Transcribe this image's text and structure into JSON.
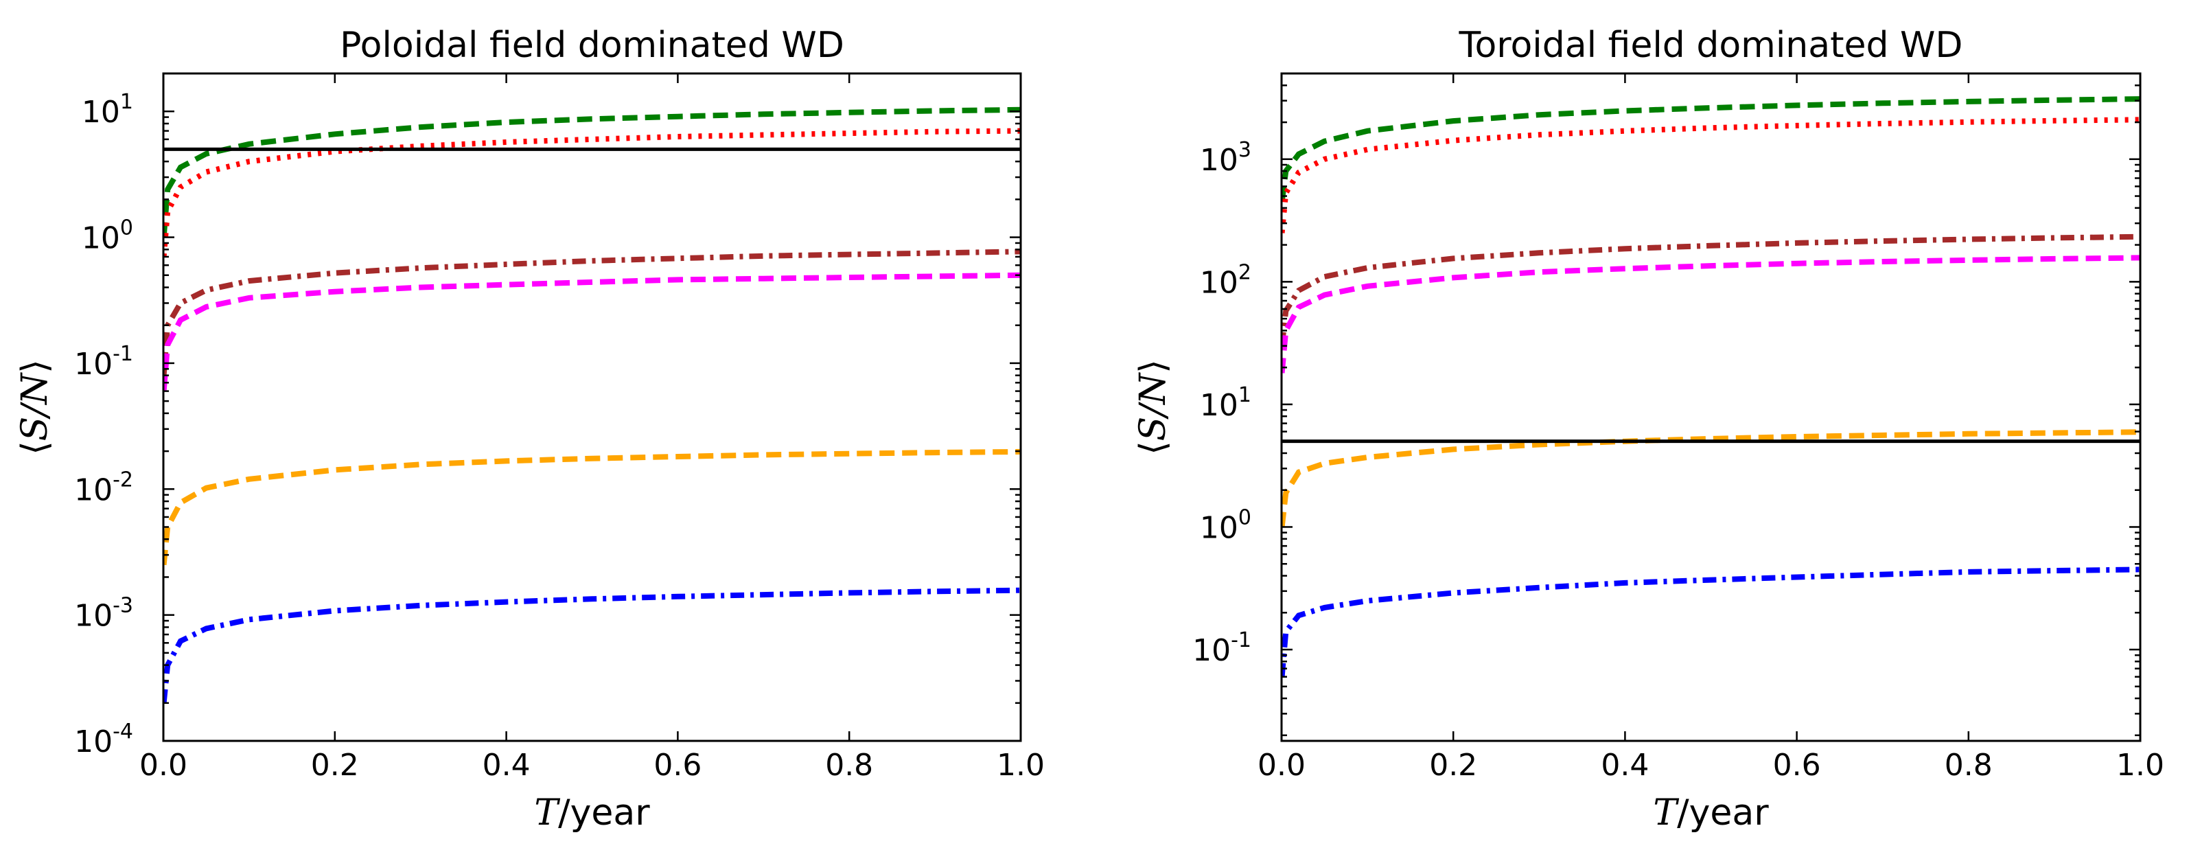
{
  "chart_data": [
    {
      "type": "line",
      "title": "Poloidal field dominated WD",
      "xlabel_var": "T",
      "xlabel_unit": "/year",
      "ylabel": "⟨S/N⟩",
      "ylabel_var": "S/N",
      "xlim": [
        0.0,
        1.0
      ],
      "ylim": [
        0.0001,
        20
      ],
      "yscale": "log",
      "xticks": [
        "0.0",
        "0.2",
        "0.4",
        "0.6",
        "0.8",
        "1.0"
      ],
      "yticks": [
        {
          "value": 0.0001,
          "base": "10",
          "exp": "-4"
        },
        {
          "value": 0.001,
          "base": "10",
          "exp": "-3"
        },
        {
          "value": 0.01,
          "base": "10",
          "exp": "-2"
        },
        {
          "value": 0.1,
          "base": "10",
          "exp": "-1"
        },
        {
          "value": 1,
          "base": "10",
          "exp": "0"
        },
        {
          "value": 10,
          "base": "10",
          "exp": "1"
        }
      ],
      "threshold": 5,
      "series": [
        {
          "name": "green",
          "color": "#007f00",
          "style": "dashed",
          "x": [
            0.0005,
            0.005,
            0.02,
            0.05,
            0.1,
            0.2,
            0.3,
            0.4,
            0.5,
            0.6,
            0.7,
            0.8,
            0.9,
            1.0
          ],
          "values": [
            1.0,
            2.4,
            3.6,
            4.6,
            5.5,
            6.6,
            7.5,
            8.2,
            8.7,
            9.1,
            9.5,
            9.8,
            10.1,
            10.3
          ]
        },
        {
          "name": "red",
          "color": "#ff0000",
          "style": "dotted",
          "x": [
            0.0005,
            0.005,
            0.02,
            0.05,
            0.1,
            0.2,
            0.3,
            0.4,
            0.5,
            0.6,
            0.7,
            0.8,
            0.9,
            1.0
          ],
          "values": [
            0.7,
            1.6,
            2.5,
            3.3,
            4.0,
            4.8,
            5.3,
            5.7,
            6.0,
            6.3,
            6.5,
            6.7,
            6.9,
            7.0
          ]
        },
        {
          "name": "brown",
          "color": "#a52a2a",
          "style": "dashdot",
          "x": [
            0.0005,
            0.005,
            0.02,
            0.05,
            0.1,
            0.2,
            0.3,
            0.4,
            0.5,
            0.6,
            0.7,
            0.8,
            0.9,
            1.0
          ],
          "values": [
            0.08,
            0.2,
            0.3,
            0.38,
            0.45,
            0.52,
            0.57,
            0.61,
            0.65,
            0.68,
            0.71,
            0.73,
            0.75,
            0.77
          ]
        },
        {
          "name": "magenta",
          "color": "#ff00ff",
          "style": "dashed",
          "x": [
            0.0005,
            0.005,
            0.02,
            0.05,
            0.1,
            0.2,
            0.3,
            0.4,
            0.5,
            0.6,
            0.7,
            0.8,
            0.9,
            1.0
          ],
          "values": [
            0.06,
            0.14,
            0.22,
            0.28,
            0.33,
            0.37,
            0.4,
            0.42,
            0.44,
            0.46,
            0.47,
            0.48,
            0.49,
            0.5
          ]
        },
        {
          "name": "orange",
          "color": "#ffa500",
          "style": "dashed",
          "x": [
            0.0005,
            0.005,
            0.02,
            0.05,
            0.1,
            0.2,
            0.3,
            0.4,
            0.5,
            0.6,
            0.7,
            0.8,
            0.9,
            1.0
          ],
          "values": [
            0.0025,
            0.005,
            0.0078,
            0.0102,
            0.012,
            0.0142,
            0.0157,
            0.0167,
            0.0175,
            0.0181,
            0.0187,
            0.0191,
            0.0195,
            0.0198
          ]
        },
        {
          "name": "blue",
          "color": "#0000ff",
          "style": "dashdot",
          "x": [
            0.0005,
            0.005,
            0.02,
            0.05,
            0.1,
            0.2,
            0.3,
            0.4,
            0.5,
            0.6,
            0.7,
            0.8,
            0.9,
            1.0
          ],
          "values": [
            0.0002,
            0.0004,
            0.00062,
            0.00078,
            0.00092,
            0.00108,
            0.00119,
            0.00127,
            0.00134,
            0.0014,
            0.00145,
            0.0015,
            0.00154,
            0.00157
          ]
        }
      ]
    },
    {
      "type": "line",
      "title": "Toroidal field dominated WD",
      "xlabel_var": "T",
      "xlabel_unit": "/year",
      "ylabel": "⟨S/N⟩",
      "ylabel_var": "S/N",
      "xlim": [
        0.0,
        1.0
      ],
      "ylim": [
        0.018,
        5000
      ],
      "yscale": "log",
      "xticks": [
        "0.0",
        "0.2",
        "0.4",
        "0.6",
        "0.8",
        "1.0"
      ],
      "yticks": [
        {
          "value": 0.1,
          "base": "10",
          "exp": "-1"
        },
        {
          "value": 1,
          "base": "10",
          "exp": "0"
        },
        {
          "value": 10,
          "base": "10",
          "exp": "1"
        },
        {
          "value": 100,
          "base": "10",
          "exp": "2"
        },
        {
          "value": 1000,
          "base": "10",
          "exp": "3"
        }
      ],
      "threshold": 5,
      "series": [
        {
          "name": "green",
          "color": "#007f00",
          "style": "dashed",
          "x": [
            0.0005,
            0.005,
            0.02,
            0.05,
            0.1,
            0.2,
            0.3,
            0.4,
            0.5,
            0.6,
            0.7,
            0.8,
            0.9,
            1.0
          ],
          "values": [
            450,
            800,
            1100,
            1400,
            1700,
            2050,
            2300,
            2480,
            2620,
            2750,
            2860,
            2950,
            3030,
            3100
          ]
        },
        {
          "name": "red",
          "color": "#ff0000",
          "style": "dotted",
          "x": [
            0.0005,
            0.005,
            0.02,
            0.05,
            0.1,
            0.2,
            0.3,
            0.4,
            0.5,
            0.6,
            0.7,
            0.8,
            0.9,
            1.0
          ],
          "values": [
            250,
            530,
            780,
            1000,
            1200,
            1420,
            1580,
            1700,
            1800,
            1880,
            1950,
            2010,
            2060,
            2100
          ]
        },
        {
          "name": "brown",
          "color": "#a52a2a",
          "style": "dashdot",
          "x": [
            0.0005,
            0.005,
            0.02,
            0.05,
            0.1,
            0.2,
            0.3,
            0.4,
            0.5,
            0.6,
            0.7,
            0.8,
            0.9,
            1.0
          ],
          "values": [
            30,
            58,
            85,
            110,
            130,
            155,
            172,
            186,
            197,
            207,
            215,
            222,
            228,
            233
          ]
        },
        {
          "name": "magenta",
          "color": "#ff00ff",
          "style": "dashed",
          "x": [
            0.0005,
            0.005,
            0.02,
            0.05,
            0.1,
            0.2,
            0.3,
            0.4,
            0.5,
            0.6,
            0.7,
            0.8,
            0.9,
            1.0
          ],
          "values": [
            18,
            40,
            62,
            78,
            92,
            108,
            120,
            128,
            135,
            141,
            146,
            150,
            154,
            157
          ]
        },
        {
          "name": "orange",
          "color": "#ffa500",
          "style": "dashed",
          "x": [
            0.0005,
            0.005,
            0.02,
            0.05,
            0.1,
            0.2,
            0.3,
            0.4,
            0.5,
            0.6,
            0.7,
            0.8,
            0.9,
            1.0
          ],
          "values": [
            1.0,
            1.9,
            2.8,
            3.3,
            3.7,
            4.3,
            4.7,
            5.0,
            5.25,
            5.45,
            5.6,
            5.75,
            5.85,
            5.95
          ]
        },
        {
          "name": "blue",
          "color": "#0000ff",
          "style": "dashdot",
          "x": [
            0.0005,
            0.005,
            0.02,
            0.05,
            0.1,
            0.2,
            0.3,
            0.4,
            0.5,
            0.6,
            0.7,
            0.8,
            0.9,
            1.0
          ],
          "values": [
            0.06,
            0.14,
            0.19,
            0.22,
            0.25,
            0.29,
            0.32,
            0.35,
            0.37,
            0.39,
            0.41,
            0.43,
            0.44,
            0.45
          ]
        }
      ]
    }
  ]
}
